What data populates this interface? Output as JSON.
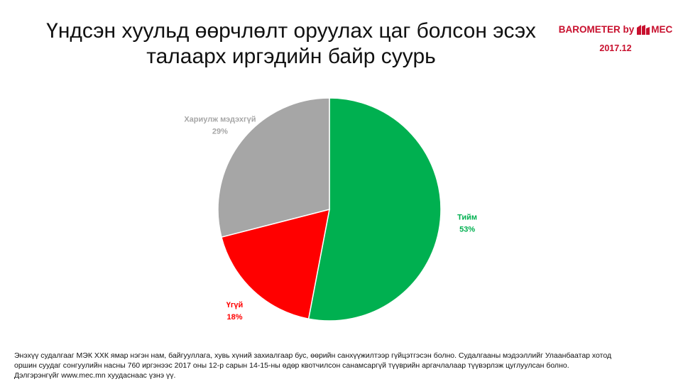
{
  "title": {
    "line1": "Үндсэн хуульд өөрчлөлт оруулах цаг болсон эсэх",
    "line2": "талаарх иргэдийн байр суурь"
  },
  "brand": {
    "name": "BAROMETER by",
    "mark": "MEC",
    "date": "2017.12",
    "color": "#c8102e"
  },
  "chart_data": {
    "type": "pie",
    "title": "Үндсэн хуульд өөрчлөлт оруулах цаг болсон эсэх талаарх иргэдийн байр суурь",
    "slices": [
      {
        "label": "Тийм",
        "value": 53,
        "value_label": "53%",
        "color": "#00b050"
      },
      {
        "label": "Үгүй",
        "value": 18,
        "value_label": "18%",
        "color": "#ff0000"
      },
      {
        "label": "Хариулж мэдэхгүй",
        "value": 29,
        "value_label": "29%",
        "color": "#a6a6a6"
      }
    ],
    "start": "12 o'clock",
    "direction": "clockwise",
    "legend": "none",
    "data_labels": "outside"
  },
  "footnote": {
    "line1": "Энэхүү судалгааг МЭК ХХК ямар нэгэн нам, байгууллага, хувь хүний захиалгаар бус, өөрийн санхүүжилтээр гүйцэтгэсэн болно. Судалгааны мэдээллийг Улаанбаатар хотод",
    "line2": "оршин суудаг сонгуулийн насны 760 иргэнээс 2017 оны 12-р сарын 14-15-ны өдөр квотчилсон санамсаргүй түүврийн аргачлалаар түүвэрлэж цуглуулсан болно.",
    "line3": "Дэлгэрэнгүйг www.mec.mn хуудаснаас үзнэ үү."
  }
}
